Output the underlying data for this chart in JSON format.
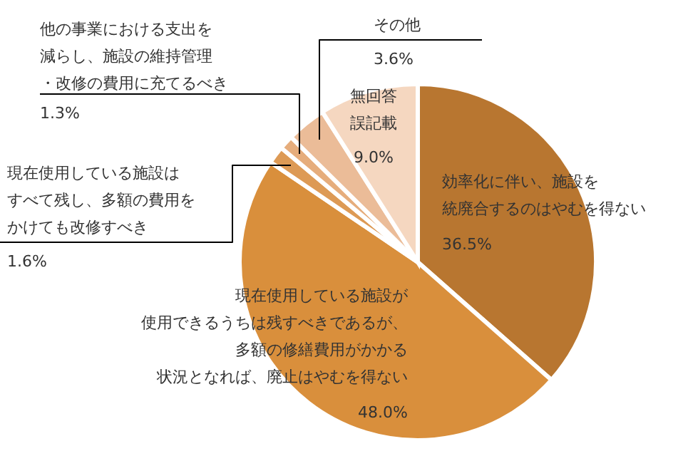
{
  "chart_data": {
    "type": "pie",
    "categories": [
      "効率化に伴い、施設を統廃合するのはやむを得ない",
      "現在使用している施設が使用できるうちは残すべきであるが、多額の修繕費用がかかる状況となれば、廃止はやむを得ない",
      "現在使用している施設はすべて残し、多額の費用をかけても改修すべき",
      "他の事業における支出を減らし、施設の維持管理・改修の費用に充てるべき",
      "その他",
      "無回答誤記載"
    ],
    "values": [
      36.5,
      48.0,
      1.6,
      1.3,
      3.6,
      9.0
    ],
    "value_labels": [
      "36.5%",
      "48.0%",
      "1.6%",
      "1.3%",
      "3.6%",
      "9.0%"
    ],
    "colors": [
      "#b87630",
      "#d98f3c",
      "#dd9a55",
      "#e6ad7c",
      "#ebbc98",
      "#f5d7c0"
    ]
  }
}
